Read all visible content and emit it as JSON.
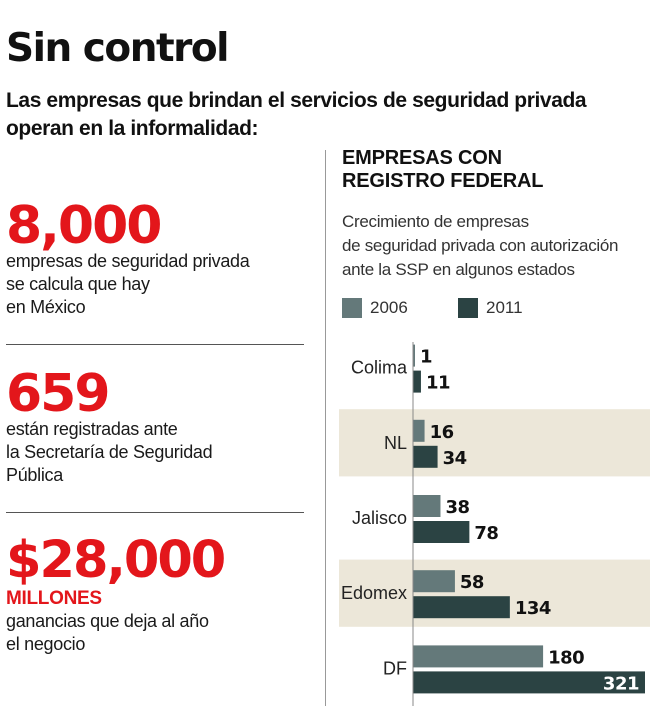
{
  "title": "Sin control",
  "subtitle": "Las empresas que brindan el servicios de seguridad privada operan en la informalidad:",
  "stats": [
    {
      "number": "8,000",
      "text_lines": [
        "empresas de seguridad privada",
        "se calcula que hay",
        "en México"
      ]
    },
    {
      "number": "659",
      "text_lines": [
        "están registradas ante",
        "la Secretaría de Seguridad",
        "Pública"
      ]
    },
    {
      "number": "$28,000",
      "sub": "MILLONES",
      "text_lines": [
        "ganancias que deja al año",
        "el negocio"
      ]
    }
  ],
  "colors": {
    "accent": "#e3161b",
    "series_2006": "#64797a",
    "series_2011": "#2b4343",
    "band": "#ece7d9"
  },
  "chart_data": {
    "type": "bar",
    "orientation": "horizontal",
    "title": "EMPRESAS CON REGISTRO FEDERAL",
    "title_lines": [
      "EMPRESAS CON",
      "REGISTRO FEDERAL"
    ],
    "description_lines": [
      "Crecimiento de empresas",
      "de seguridad privada con autorización",
      "ante la SSP en algunos estados"
    ],
    "categories": [
      "Colima",
      "NL",
      "Jalisco",
      "Edomex",
      "DF"
    ],
    "series": [
      {
        "name": "2006",
        "values": [
          1,
          16,
          38,
          58,
          180
        ],
        "color": "#64797a"
      },
      {
        "name": "2011",
        "values": [
          11,
          34,
          78,
          134,
          321
        ],
        "color": "#2b4343"
      }
    ],
    "xlim": [
      0,
      321
    ],
    "legend_position": "top",
    "grid": false
  }
}
